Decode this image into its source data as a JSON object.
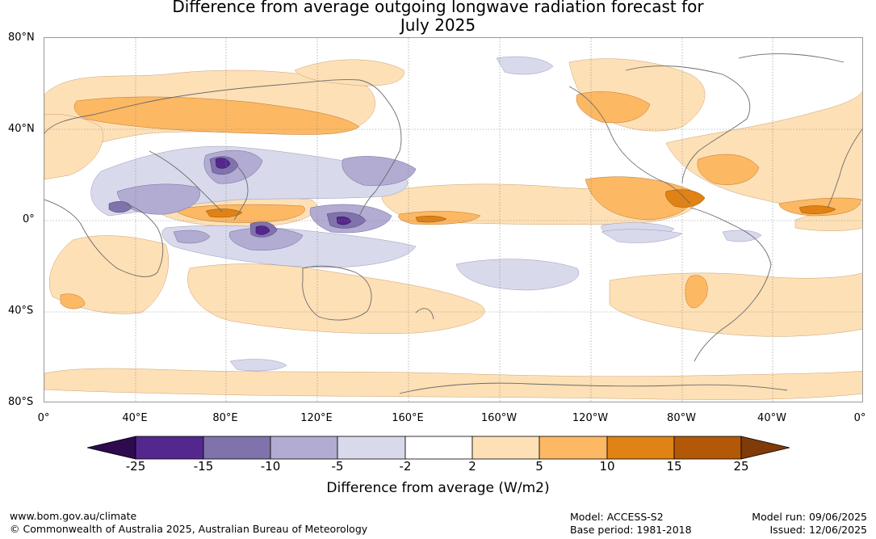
{
  "title_line1": "Difference from average outgoing longwave radiation forecast for",
  "title_line2": "July 2025",
  "map": {
    "lat_labels": [
      "80°N",
      "40°N",
      "0°",
      "40°S",
      "80°S"
    ],
    "lon_labels": [
      "0°",
      "40°E",
      "80°E",
      "120°E",
      "160°E",
      "160°W",
      "120°W",
      "80°W",
      "40°W",
      "0°"
    ],
    "legend": {
      "title": "Difference from average (W/m2)",
      "ticks": [
        "-25",
        "-15",
        "-10",
        "-5",
        "-2",
        "2",
        "5",
        "10",
        "15",
        "25"
      ],
      "colors": [
        "#2e0a4f",
        "#54278f",
        "#8073ac",
        "#b2abd2",
        "#d8daeb",
        "#ffffff",
        "#fee0b6",
        "#fdb863",
        "#e08214",
        "#b35806",
        "#7f3b08"
      ]
    }
  },
  "footer": {
    "website": "www.bom.gov.au/climate",
    "copyright": "© Commonwealth of Australia 2025, Australian Bureau of Meteorology",
    "model": "Model: ACCESS-S2",
    "base_period": "Base period: 1981-2018",
    "model_run": "Model run: 09/06/2025",
    "issued": "Issued: 12/06/2025"
  }
}
